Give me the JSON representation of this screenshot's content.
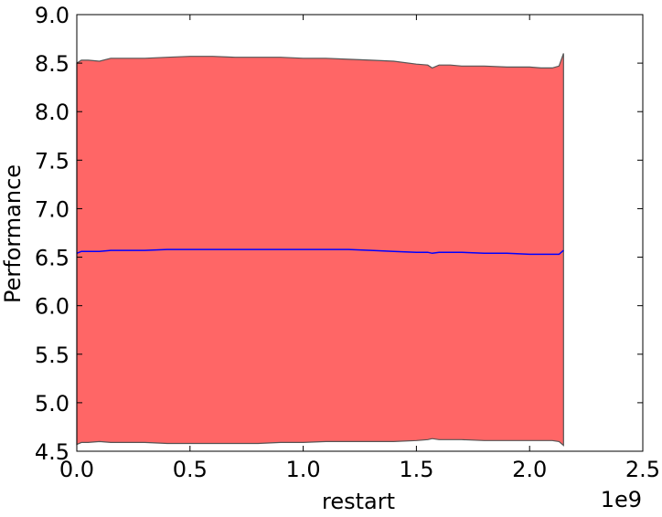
{
  "chart_data": {
    "type": "area",
    "title": "",
    "xlabel": "restart",
    "ylabel": "Performance",
    "x_offset_label": "1e9",
    "xlim": [
      0.0,
      2.5
    ],
    "ylim": [
      4.5,
      9.0
    ],
    "x_ticks": [
      "0.0",
      "0.5",
      "1.0",
      "1.5",
      "2.0",
      "2.5"
    ],
    "y_ticks": [
      "4.5",
      "5.0",
      "5.5",
      "6.0",
      "6.5",
      "7.0",
      "7.5",
      "8.0",
      "8.5",
      "9.0"
    ],
    "grid": false,
    "legend": "none",
    "x": [
      0.0,
      0.02,
      0.05,
      0.1,
      0.15,
      0.2,
      0.3,
      0.4,
      0.5,
      0.6,
      0.7,
      0.8,
      0.9,
      1.0,
      1.1,
      1.2,
      1.3,
      1.4,
      1.5,
      1.55,
      1.57,
      1.6,
      1.65,
      1.7,
      1.8,
      1.9,
      2.0,
      2.05,
      2.1,
      2.13,
      2.15
    ],
    "series": [
      {
        "values": [
          6.54,
          6.56,
          6.56,
          6.56,
          6.57,
          6.57,
          6.57,
          6.58,
          6.58,
          6.58,
          6.58,
          6.58,
          6.58,
          6.58,
          6.58,
          6.58,
          6.57,
          6.56,
          6.55,
          6.55,
          6.54,
          6.55,
          6.55,
          6.55,
          6.54,
          6.54,
          6.53,
          6.53,
          6.53,
          6.53,
          6.57
        ]
      }
    ],
    "band": {
      "upper": [
        8.5,
        8.53,
        8.53,
        8.52,
        8.55,
        8.55,
        8.55,
        8.56,
        8.57,
        8.57,
        8.56,
        8.56,
        8.56,
        8.55,
        8.55,
        8.54,
        8.53,
        8.52,
        8.49,
        8.48,
        8.45,
        8.48,
        8.48,
        8.47,
        8.47,
        8.46,
        8.46,
        8.45,
        8.45,
        8.47,
        8.6
      ],
      "lower": [
        4.57,
        4.59,
        4.59,
        4.6,
        4.59,
        4.59,
        4.59,
        4.58,
        4.58,
        4.58,
        4.58,
        4.58,
        4.59,
        4.59,
        4.6,
        4.6,
        4.6,
        4.6,
        4.61,
        4.62,
        4.63,
        4.62,
        4.62,
        4.62,
        4.61,
        4.61,
        4.61,
        4.61,
        4.61,
        4.6,
        4.56
      ]
    },
    "colors": {
      "band_fill": "#ff6666",
      "band_edge": "#555555",
      "mean_line": "#0000ff",
      "axes": "#000000"
    }
  }
}
